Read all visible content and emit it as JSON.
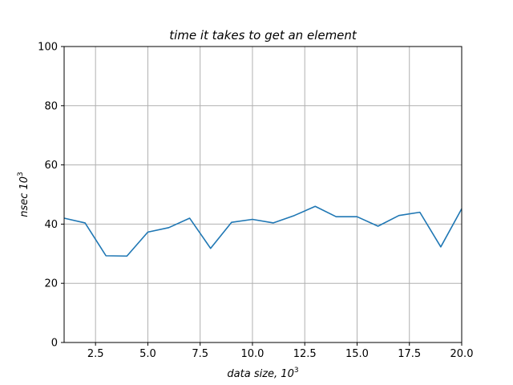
{
  "chart_data": {
    "type": "line",
    "title": "time it takes to get an element",
    "xlabel": "data size, 10",
    "xlabel_sup": "3",
    "ylabel": "nsec 10",
    "ylabel_sup": "3",
    "xlim": [
      1,
      20
    ],
    "ylim": [
      0,
      100
    ],
    "grid": true,
    "x_ticks": [
      2.5,
      5.0,
      7.5,
      10.0,
      12.5,
      15.0,
      17.5,
      20.0
    ],
    "x_tick_labels": [
      "2.5",
      "5.0",
      "7.5",
      "10.0",
      "12.5",
      "15.0",
      "17.5",
      "20.0"
    ],
    "y_ticks": [
      0,
      20,
      40,
      60,
      80,
      100
    ],
    "y_tick_labels": [
      "0",
      "20",
      "40",
      "60",
      "80",
      "100"
    ],
    "series": [
      {
        "color": "#1f77b4",
        "x": [
          1,
          2,
          3,
          4,
          5,
          6,
          7,
          8,
          9,
          10,
          11,
          12,
          13,
          14,
          15,
          16,
          17,
          18,
          19,
          20
        ],
        "y": [
          42.0,
          40.4,
          29.3,
          29.2,
          37.3,
          38.8,
          42.0,
          31.8,
          40.6,
          41.6,
          40.4,
          42.9,
          46.0,
          42.5,
          42.5,
          39.3,
          42.9,
          44.0,
          32.3,
          45.2
        ]
      }
    ]
  }
}
